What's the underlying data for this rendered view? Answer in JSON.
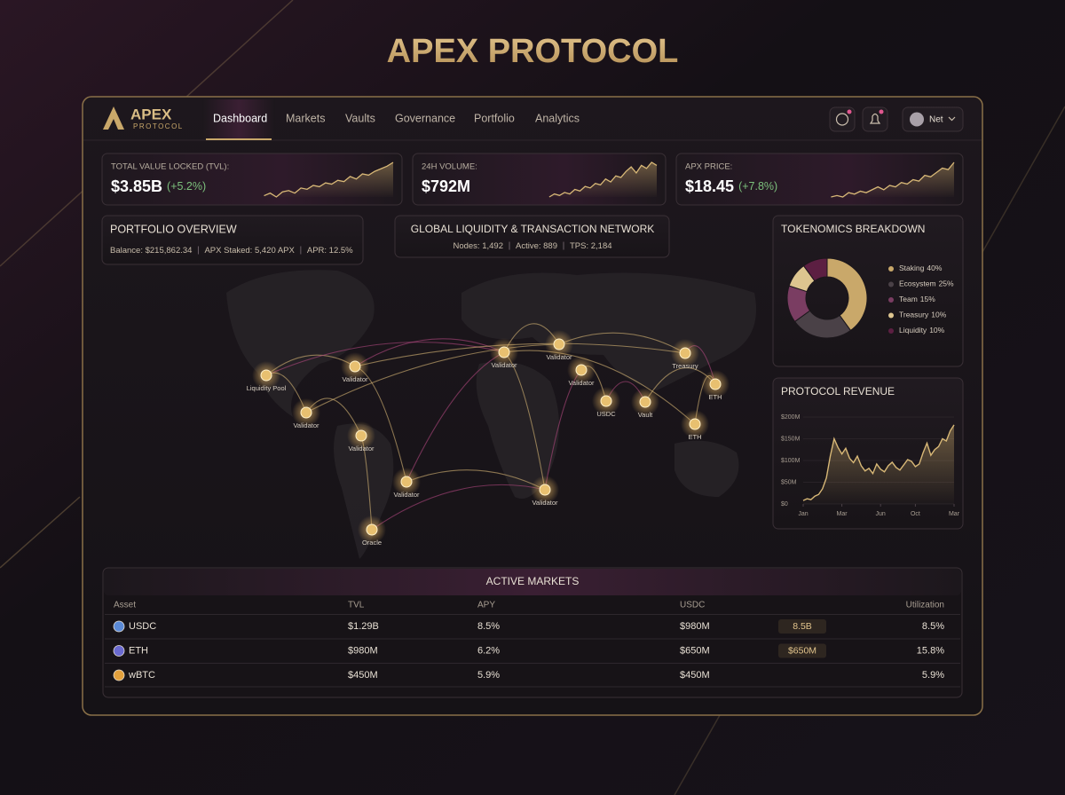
{
  "page_title": "APEX PROTOCOL",
  "nav": {
    "logo": "APEX",
    "logo_sub": "PROTOCOL",
    "links": [
      "Dashboard",
      "Markets",
      "Vaults",
      "Governance",
      "Portfolio",
      "Analytics"
    ],
    "user": "Net"
  },
  "stats": [
    {
      "label": "TOTAL VALUE LOCKED (TVL):",
      "value": "$3.85B",
      "change": "(+5.2%)",
      "sparkline": [
        12,
        14,
        11,
        15,
        16,
        14,
        18,
        17,
        20,
        19,
        22,
        21,
        24,
        23,
        27,
        25,
        29,
        28,
        31,
        33,
        35,
        38
      ]
    },
    {
      "label": "24H VOLUME:",
      "value": "$792M",
      "sparkline": [
        10,
        12,
        11,
        13,
        12,
        15,
        14,
        17,
        16,
        19,
        18,
        22,
        20,
        24,
        23,
        27,
        30,
        26,
        31,
        29,
        33,
        31
      ]
    },
    {
      "label": "APX PRICE:",
      "value": "$18.45",
      "change": "(+7.8%)",
      "sparkline": [
        10,
        11,
        10,
        13,
        12,
        14,
        13,
        15,
        17,
        15,
        18,
        17,
        20,
        19,
        22,
        21,
        25,
        24,
        27,
        30,
        29,
        34
      ]
    }
  ],
  "portfolio": {
    "title": "PORTFOLIO OVERVIEW",
    "items": [
      "Balance: $215,862.34",
      "APX Staked: 5,420 APX",
      "APR: 12.5%"
    ]
  },
  "network": {
    "title": "GLOBAL LIQUIDITY & TRANSACTION NETWORK",
    "items": [
      "Nodes: 1,492",
      "Active: 889",
      "TPS: 2,184"
    ],
    "nodes": [
      "Liquidity Pool",
      "Validator",
      "Validator",
      "Validator",
      "Validator",
      "Oracle",
      "Validator",
      "Validator",
      "Validator",
      "USDC",
      "Vault",
      "Treasury",
      "ETH",
      "ETH",
      "Validator"
    ]
  },
  "tokenomics": {
    "type": "pie",
    "title": "TOKENOMICS BREAKDOWN",
    "categories": [
      "Staking",
      "Ecosystem",
      "Team",
      "Treasury",
      "Liquidity"
    ],
    "values": [
      40,
      25,
      15,
      10,
      10
    ],
    "value_labels": [
      "40%",
      "25%",
      "15%",
      "10%",
      "10%"
    ],
    "colors": [
      "#c9a86a",
      "#4a4147",
      "#7a3d62",
      "#ddc58f",
      "#5c1f42"
    ]
  },
  "revenue": {
    "type": "line",
    "title": "PROTOCOL REVENUE",
    "color": "#d8b877",
    "x": [
      0,
      1,
      2,
      3,
      4,
      5,
      6,
      7,
      8,
      9,
      10,
      11,
      12,
      13,
      14,
      15,
      16,
      17,
      18,
      19,
      20,
      21,
      22,
      23,
      24,
      25,
      26,
      27,
      28,
      29,
      30,
      31,
      32,
      33,
      34,
      35,
      36,
      37,
      38,
      39
    ],
    "values": [
      8,
      12,
      10,
      18,
      22,
      35,
      60,
      110,
      150,
      130,
      115,
      128,
      105,
      95,
      110,
      88,
      76,
      82,
      70,
      92,
      80,
      74,
      88,
      96,
      84,
      78,
      90,
      102,
      98,
      86,
      92,
      118,
      140,
      112,
      125,
      132,
      150,
      145,
      168,
      182
    ],
    "xlim": [
      0,
      39
    ],
    "xticks": [
      {
        "value": 0,
        "label": "Jan"
      },
      {
        "value": 10,
        "label": "Mar"
      },
      {
        "value": 20,
        "label": "Jun"
      },
      {
        "value": 29,
        "label": "Oct"
      },
      {
        "value": 39,
        "label": "Mar"
      }
    ],
    "ylim": [
      0,
      200
    ],
    "yticks": [
      {
        "value": 0,
        "label": "$0"
      },
      {
        "value": 50,
        "label": "$50M"
      },
      {
        "value": 100,
        "label": "$100M"
      },
      {
        "value": 150,
        "label": "$150M"
      },
      {
        "value": 200,
        "label": "$200M"
      }
    ]
  },
  "markets": {
    "title": "ACTIVE MARKETS",
    "columns": [
      "Asset",
      "TVL",
      "APY",
      "USDC",
      "Utilization"
    ],
    "rows": [
      {
        "asset": "USDC",
        "tvl": "$1.29B",
        "apy": "8.5%",
        "usdc": "$980M",
        "badge": "8.5B",
        "utilization": "8.5%"
      },
      {
        "asset": "ETH",
        "tvl": "$980M",
        "apy": "6.2%",
        "usdc": "$650M",
        "badge": "$650M",
        "utilization": "15.8%"
      },
      {
        "asset": "wBTC",
        "tvl": "$450M",
        "apy": "5.9%",
        "usdc": "$450M",
        "utilization": "5.9%"
      }
    ]
  }
}
